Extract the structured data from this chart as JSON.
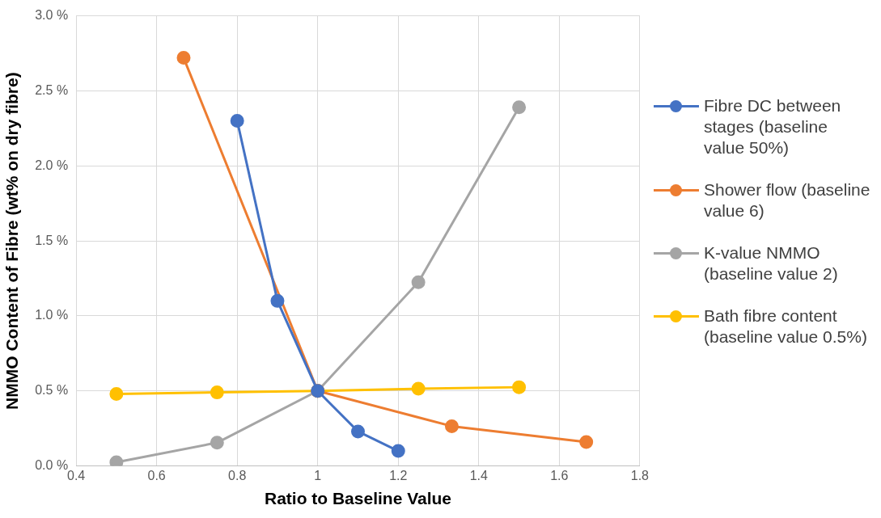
{
  "chart_data": {
    "type": "line",
    "xlabel": "Ratio to Baseline Value",
    "ylabel": "NMMO Content of Fibre (wt% on dry fibre)",
    "xlim": [
      0.4,
      1.8
    ],
    "xticks": [
      0.4,
      0.6,
      0.8,
      1,
      1.2,
      1.4,
      1.6,
      1.8
    ],
    "ylim": [
      0,
      3
    ],
    "yticks": [
      {
        "value": 0,
        "label": "0.0 %"
      },
      {
        "value": 0.5,
        "label": "0.5 %"
      },
      {
        "value": 1,
        "label": "1.0 %"
      },
      {
        "value": 1.5,
        "label": "1.5 %"
      },
      {
        "value": 2,
        "label": "2.0 %"
      },
      {
        "value": 2.5,
        "label": "2.5 %"
      },
      {
        "value": 3,
        "label": "3.0 %"
      }
    ],
    "grid": true,
    "legend": "right",
    "marker": "circle",
    "line_style": "solid",
    "series": [
      {
        "name": "Fibre DC between stages (baseline value 50%)",
        "color": "#4472c4",
        "x": [
          0.8,
          0.9,
          1,
          1.1,
          1.2
        ],
        "values": [
          2.3,
          1.1,
          0.5,
          0.23,
          0.1
        ]
      },
      {
        "name": "Shower flow (baseline value 6)",
        "color": "#ed7d31",
        "x": [
          0.667,
          1,
          1.333,
          1.667
        ],
        "values": [
          2.72,
          0.5,
          0.265,
          0.16
        ]
      },
      {
        "name": "K-value NMMO (baseline value 2)",
        "color": "#a5a5a5",
        "x": [
          0.5,
          0.75,
          1,
          1.25,
          1.5
        ],
        "values": [
          0.025,
          0.155,
          0.5,
          1.225,
          2.39
        ]
      },
      {
        "name": "Bath fibre content (baseline value 0.5%)",
        "color": "#ffc000",
        "x": [
          0.5,
          0.75,
          1,
          1.25,
          1.5
        ],
        "values": [
          0.48,
          0.49,
          0.5,
          0.515,
          0.525
        ]
      }
    ]
  }
}
